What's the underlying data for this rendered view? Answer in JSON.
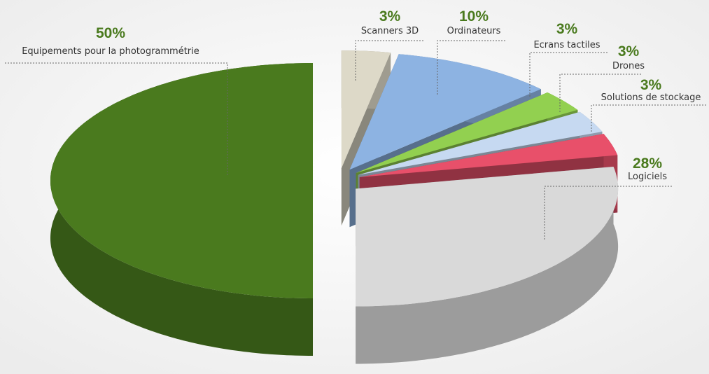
{
  "chart_data": {
    "type": "pie3d",
    "categories": [
      "Scanners 3D",
      "Ordinateurs",
      "Ecrans tactiles",
      "Drones",
      "Solutions de stockage",
      "Logiciels",
      "Equipements pour la photogrammétrie"
    ],
    "values": [
      3,
      10,
      3,
      3,
      3,
      28,
      50
    ],
    "value_labels": [
      "3%",
      "10%",
      "3%",
      "3%",
      "3%",
      "28%",
      "50%"
    ],
    "colors": [
      "#ddd9c8",
      "#8db3e2",
      "#92d050",
      "#c6d9f1",
      "#e8506a",
      "#d9d9d9",
      "#4a7a1e"
    ]
  }
}
